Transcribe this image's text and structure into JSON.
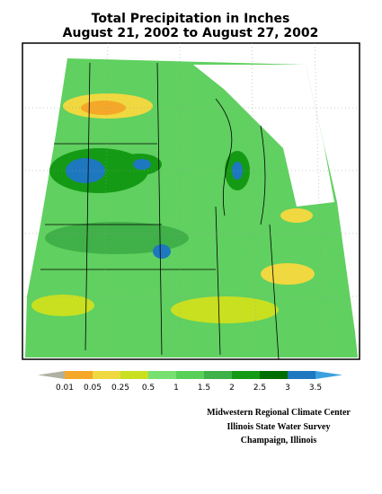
{
  "title": [
    "Total Precipitation in Inches",
    "August 21, 2002 to August 27, 2002"
  ],
  "legend": {
    "labels": [
      "0.01",
      "0.05",
      "0.25",
      "0.5",
      "1",
      "1.5",
      "2",
      "2.5",
      "3",
      "3.5"
    ],
    "colors": [
      "#b0b0a0",
      "#f5a828",
      "#f0d840",
      "#c8e020",
      "#78e070",
      "#58d058",
      "#40b048",
      "#149a14",
      "#006e00",
      "#1e78c0",
      "#3ca0e0"
    ]
  },
  "credits": [
    "Midwestern Regional Climate Center",
    "Illinois State Water Survey",
    "Champaign, Illinois"
  ]
}
